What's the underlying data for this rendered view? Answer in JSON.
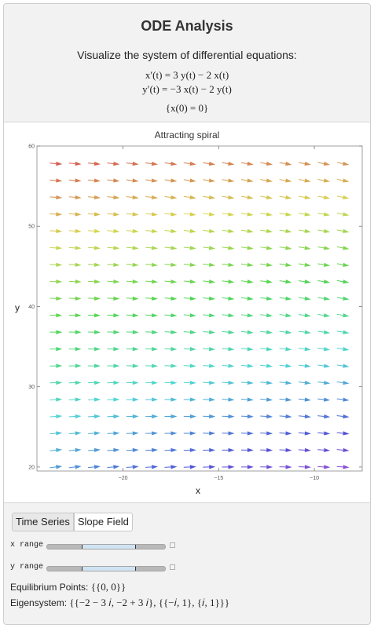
{
  "header": {
    "title": "ODE Analysis",
    "subtitle": "Visualize the system of differential equations:",
    "eq1": "x′(t) = 3 y(t) − 2 x(t)",
    "eq2": "y′(t) = −3 x(t) − 2 y(t)",
    "initial": "{x(0) = 0}"
  },
  "plot": {
    "title": "Attracting spiral",
    "xlabel": "x",
    "ylabel": "y"
  },
  "chart_data": {
    "type": "vector-field",
    "title": "Attracting spiral",
    "xlabel": "x",
    "ylabel": "y",
    "xlim": [
      -24.5,
      -7.5
    ],
    "ylim": [
      19.5,
      60
    ],
    "x_ticks": [
      -20,
      -15,
      -10
    ],
    "x_tick_labels": [
      "−20",
      "−15",
      "−10"
    ],
    "y_ticks": [
      20,
      30,
      40,
      50,
      60
    ],
    "x_grid": [
      -23.5,
      -22.5,
      -21.5,
      -20.5,
      -19.5,
      -18.5,
      -17.5,
      -16.5,
      -15.5,
      -14.5,
      -13.5,
      -12.5,
      -11.5,
      -10.5,
      -9.5,
      -8.5
    ],
    "y_grid": [
      20,
      22.1,
      24.2,
      26.3,
      28.4,
      30.5,
      32.6,
      34.7,
      36.8,
      38.9,
      41,
      43.1,
      45.2,
      47.3,
      49.4,
      51.5,
      53.6,
      55.7,
      57.8
    ],
    "field": "dx/dt = 3y − 2x, dy/dt = −3x − 2y",
    "coloring": "rainbow by vector magnitude",
    "grid_lines": false
  },
  "controls": {
    "tabs": [
      {
        "label": "Time Series",
        "active": false
      },
      {
        "label": "Slope Field",
        "active": true
      }
    ],
    "x_range_label": "x range",
    "y_range_label": "y range",
    "x_range_fraction": [
      0.29,
      0.74
    ],
    "y_range_fraction": [
      0.29,
      0.74
    ]
  },
  "info": {
    "equilibrium_label": "Equilibrium Points:",
    "equilibrium_value": "{{0, 0}}",
    "eigensystem_label": "Eigensystem:",
    "eigensystem_value": "{{−2 − 3 𝑖, −2 + 3 𝑖}, {{−𝑖, 1}, {𝑖, 1}}}"
  }
}
